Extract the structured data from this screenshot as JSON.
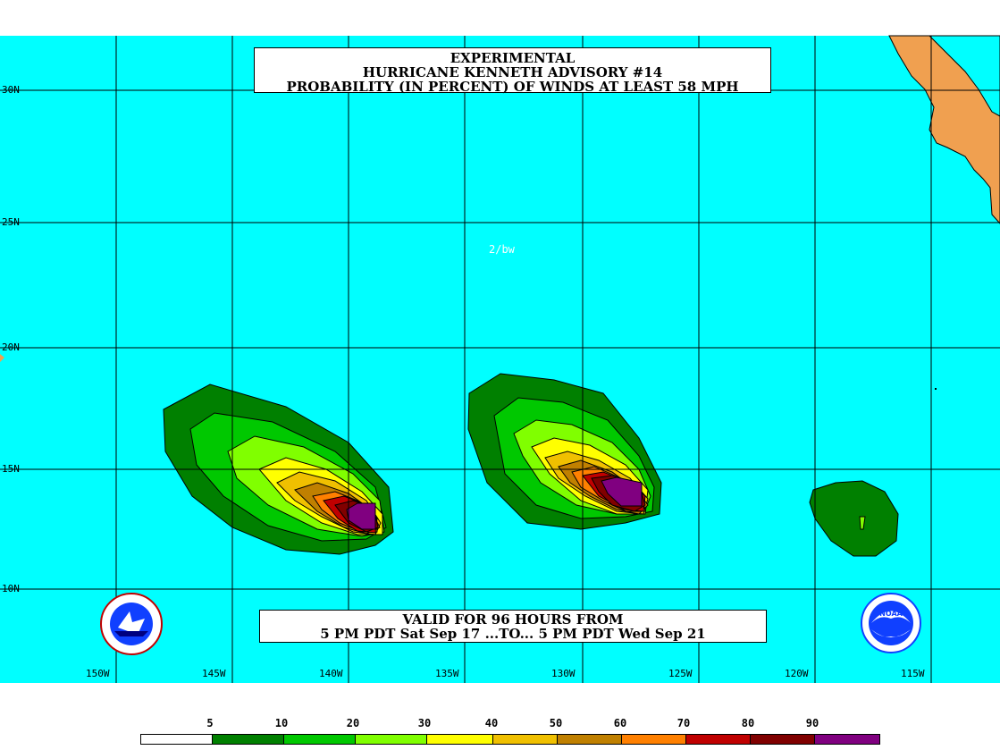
{
  "title": {
    "line1": "EXPERIMENTAL",
    "line2": "HURRICANE KENNETH ADVISORY #14",
    "line3": "PROBABILITY (IN PERCENT) OF WINDS AT LEAST 58 MPH"
  },
  "analyst_tag": "2/bw",
  "valid": {
    "line1": "VALID FOR 96 HOURS FROM",
    "line2": "5 PM PDT Sat Sep 17 ...TO... 5 PM PDT Wed Sep 21"
  },
  "latitudes": [
    "30N",
    "25N",
    "20N",
    "15N",
    "10N"
  ],
  "longitudes": [
    "150W",
    "145W",
    "140W",
    "135W",
    "130W",
    "125W",
    "120W",
    "115W"
  ],
  "legend": {
    "labels": [
      "5",
      "10",
      "20",
      "30",
      "40",
      "50",
      "60",
      "70",
      "80",
      "90"
    ],
    "colors": [
      "#ffffff",
      "#008000",
      "#00c800",
      "#80ff00",
      "#ffff00",
      "#f0c000",
      "#c08000",
      "#ff8000",
      "#c00000",
      "#800000",
      "#800080"
    ]
  },
  "colors": {
    "ocean": "#00ffff",
    "land": "#f0a050",
    "grid": "#000000"
  },
  "logos": {
    "left": "nws-logo",
    "right": "noaa-logo"
  }
}
